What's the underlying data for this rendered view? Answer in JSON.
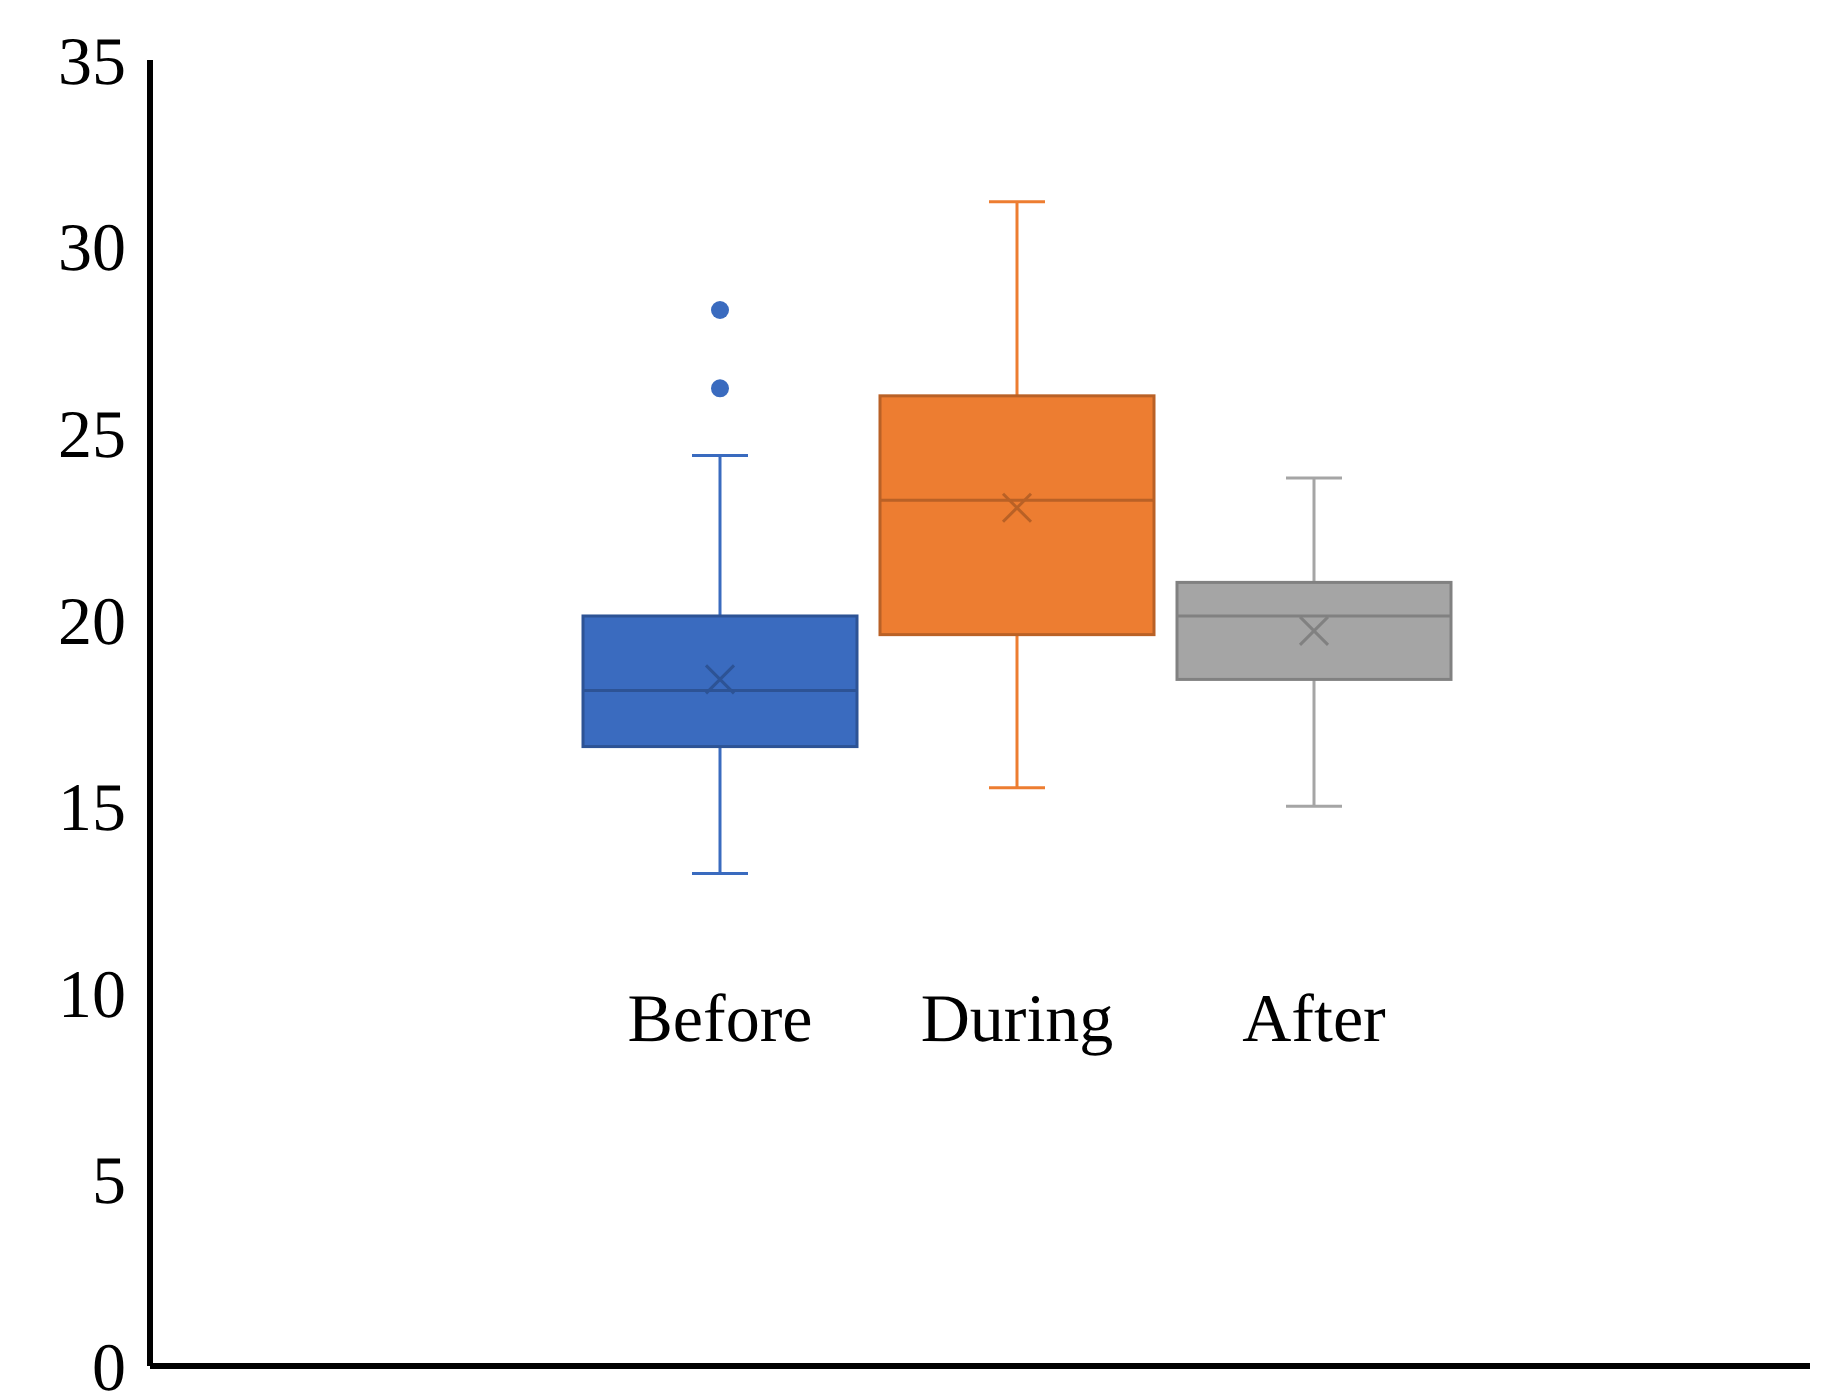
{
  "chart_data": {
    "type": "box",
    "categories": [
      "Before",
      "During",
      "After"
    ],
    "colors": [
      "#3a6bbf",
      "#ed7d31",
      "#a5a5a5"
    ],
    "boxes": [
      {
        "low": 13.2,
        "q1": 16.6,
        "median": 18.1,
        "q3": 20.1,
        "high": 24.4,
        "mean": 18.4,
        "outliers": [
          26.2,
          28.3
        ]
      },
      {
        "low": 15.5,
        "q1": 19.6,
        "median": 23.2,
        "q3": 26.0,
        "high": 31.2,
        "mean": 23.0
      },
      {
        "low": 15.0,
        "q1": 18.4,
        "median": 20.1,
        "q3": 21.0,
        "high": 23.8,
        "mean": 19.7
      }
    ],
    "ylim": [
      0,
      35
    ],
    "yticks": [
      0,
      5,
      10,
      15,
      20,
      25,
      30,
      35
    ],
    "grid": false
  }
}
